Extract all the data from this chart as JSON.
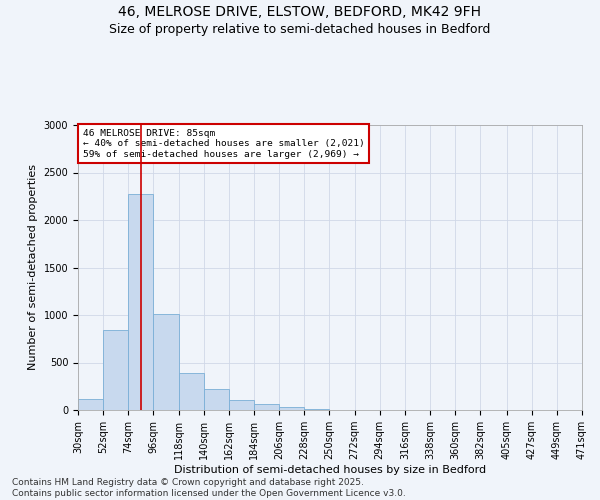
{
  "title_line1": "46, MELROSE DRIVE, ELSTOW, BEDFORD, MK42 9FH",
  "title_line2": "Size of property relative to semi-detached houses in Bedford",
  "xlabel": "Distribution of semi-detached houses by size in Bedford",
  "ylabel": "Number of semi-detached properties",
  "footer_line1": "Contains HM Land Registry data © Crown copyright and database right 2025.",
  "footer_line2": "Contains public sector information licensed under the Open Government Licence v3.0.",
  "bins": [
    30,
    52,
    74,
    96,
    118,
    140,
    162,
    184,
    206,
    228,
    250,
    272,
    294,
    316,
    338,
    360,
    382,
    405,
    427,
    449,
    471
  ],
  "bin_labels": [
    "30sqm",
    "52sqm",
    "74sqm",
    "96sqm",
    "118sqm",
    "140sqm",
    "162sqm",
    "184sqm",
    "206sqm",
    "228sqm",
    "250sqm",
    "272sqm",
    "294sqm",
    "316sqm",
    "338sqm",
    "360sqm",
    "382sqm",
    "405sqm",
    "427sqm",
    "449sqm",
    "471sqm"
  ],
  "values": [
    120,
    840,
    2270,
    1010,
    390,
    220,
    110,
    60,
    30,
    10,
    5,
    2,
    1,
    1,
    0,
    0,
    0,
    0,
    0,
    0
  ],
  "bar_color": "#c8d9ee",
  "bar_edge_color": "#7aaed6",
  "vline_x": 85,
  "vline_color": "#cc0000",
  "annotation_text": "46 MELROSE DRIVE: 85sqm\n← 40% of semi-detached houses are smaller (2,021)\n59% of semi-detached houses are larger (2,969) →",
  "annotation_box_color": "#cc0000",
  "ylim": [
    0,
    3000
  ],
  "yticks": [
    0,
    500,
    1000,
    1500,
    2000,
    2500,
    3000
  ],
  "background_color": "#f0f4fa",
  "grid_color": "#d0d8e8",
  "title_fontsize": 10,
  "subtitle_fontsize": 9,
  "label_fontsize": 8,
  "tick_fontsize": 7,
  "footer_fontsize": 6.5
}
